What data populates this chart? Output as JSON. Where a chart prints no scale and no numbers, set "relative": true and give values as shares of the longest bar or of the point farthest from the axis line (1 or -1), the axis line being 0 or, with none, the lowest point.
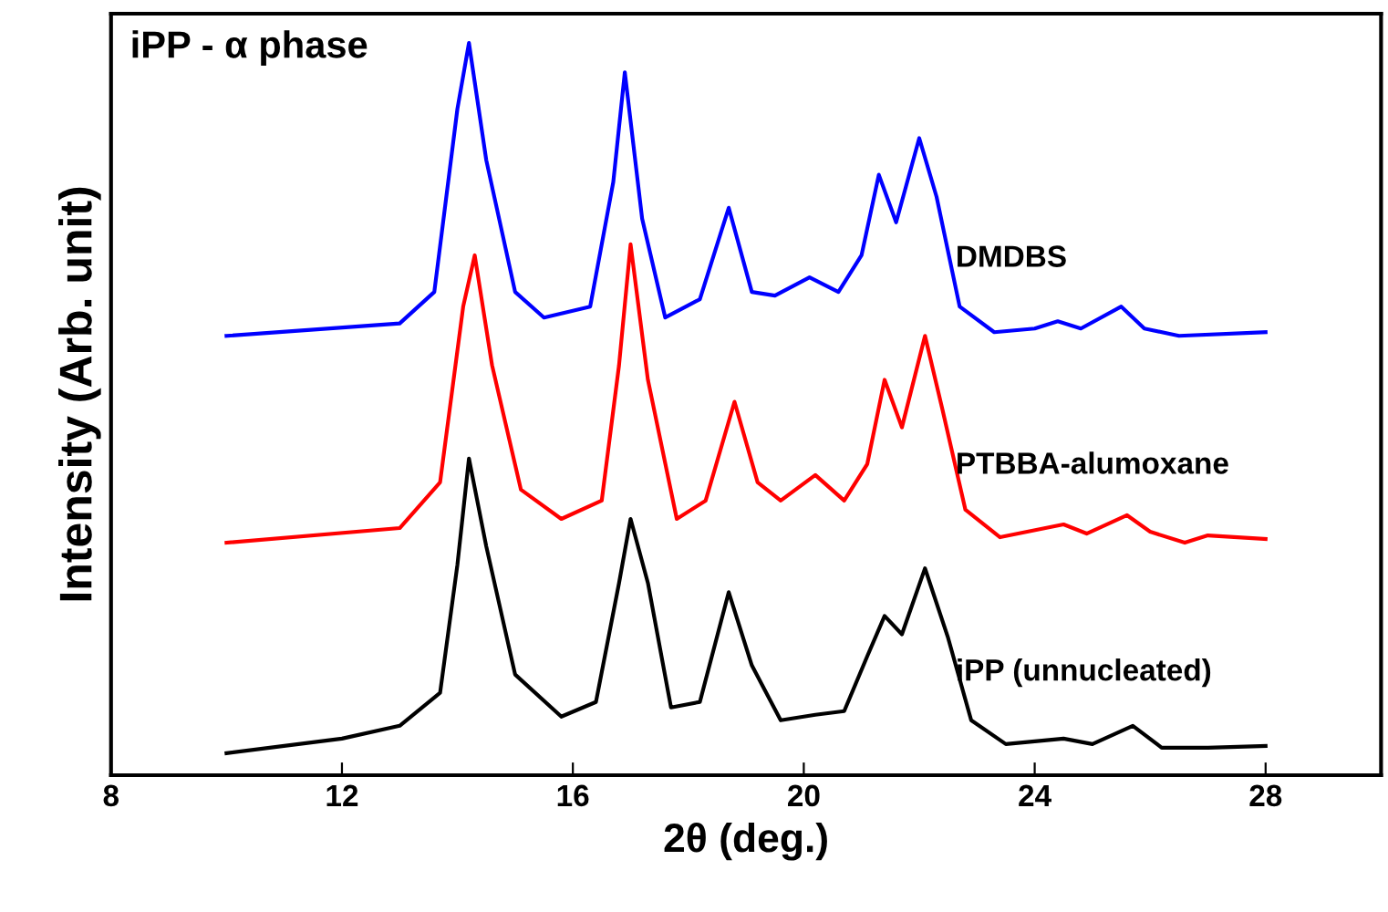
{
  "chart_data": {
    "type": "line",
    "relative": true,
    "xlabel": "2θ (deg.)",
    "ylabel": "Intensity (Arb. unit)",
    "annotations": [
      "iPP - α phase"
    ],
    "xlim": [
      8,
      30
    ],
    "xticks": [
      8,
      12,
      16,
      20,
      24,
      28
    ],
    "grid": false,
    "legend": false,
    "marker": "none",
    "line_style": "solid",
    "series": [
      {
        "name": "DMDBS",
        "color": "#0000ff",
        "x": [
          10,
          13,
          13.6,
          14.0,
          14.2,
          14.5,
          15,
          15.5,
          16.3,
          16.7,
          16.9,
          17.2,
          17.6,
          18.2,
          18.7,
          19.1,
          19.5,
          20.1,
          20.6,
          21.0,
          21.3,
          21.6,
          22.0,
          22.3,
          22.7,
          23.3,
          24.0,
          24.4,
          24.8,
          25.5,
          25.9,
          26.5,
          28
        ],
        "values": [
          0.6,
          0.617,
          0.66,
          0.91,
          1.0,
          0.84,
          0.66,
          0.625,
          0.64,
          0.81,
          0.96,
          0.76,
          0.625,
          0.65,
          0.775,
          0.66,
          0.655,
          0.68,
          0.66,
          0.71,
          0.82,
          0.755,
          0.87,
          0.79,
          0.64,
          0.605,
          0.61,
          0.62,
          0.61,
          0.64,
          0.61,
          0.6,
          0.605
        ]
      },
      {
        "name": "PTBBA-alumoxane",
        "color": "#ff0000",
        "x": [
          10,
          13,
          13.7,
          14.1,
          14.3,
          14.6,
          15.1,
          15.8,
          16.5,
          16.8,
          17.0,
          17.3,
          17.8,
          18.3,
          18.8,
          19.2,
          19.6,
          20.2,
          20.7,
          21.1,
          21.4,
          21.7,
          22.1,
          22.4,
          22.8,
          23.4,
          24.5,
          24.9,
          25.6,
          26.0,
          26.6,
          27,
          28
        ],
        "values": [
          0.3175,
          0.3375,
          0.4,
          0.64,
          0.71,
          0.56,
          0.39,
          0.35,
          0.375,
          0.56,
          0.725,
          0.54,
          0.35,
          0.375,
          0.51,
          0.4,
          0.375,
          0.41,
          0.375,
          0.425,
          0.54,
          0.475,
          0.6,
          0.5,
          0.3625,
          0.325,
          0.3425,
          0.33,
          0.355,
          0.3325,
          0.3175,
          0.3275,
          0.3225
        ]
      },
      {
        "name": "iPP (unnucleated)",
        "color": "#000000",
        "x": [
          10,
          12,
          13,
          13.7,
          14.0,
          14.2,
          14.5,
          15.0,
          15.8,
          16.4,
          16.8,
          17.0,
          17.3,
          17.7,
          18.2,
          18.7,
          19.1,
          19.6,
          20.2,
          20.7,
          21.1,
          21.4,
          21.7,
          22.1,
          22.5,
          22.9,
          23.5,
          24.5,
          25.0,
          25.7,
          26.2,
          27,
          28
        ],
        "values": [
          0.03,
          0.05,
          0.0675,
          0.1125,
          0.2875,
          0.4325,
          0.3125,
          0.1375,
          0.08,
          0.1,
          0.2625,
          0.35,
          0.2625,
          0.0925,
          0.1,
          0.25,
          0.15,
          0.075,
          0.0825,
          0.0875,
          0.1625,
          0.2175,
          0.1925,
          0.2825,
          0.1875,
          0.075,
          0.0425,
          0.05,
          0.0425,
          0.0675,
          0.0375,
          0.0375,
          0.04
        ]
      }
    ]
  }
}
